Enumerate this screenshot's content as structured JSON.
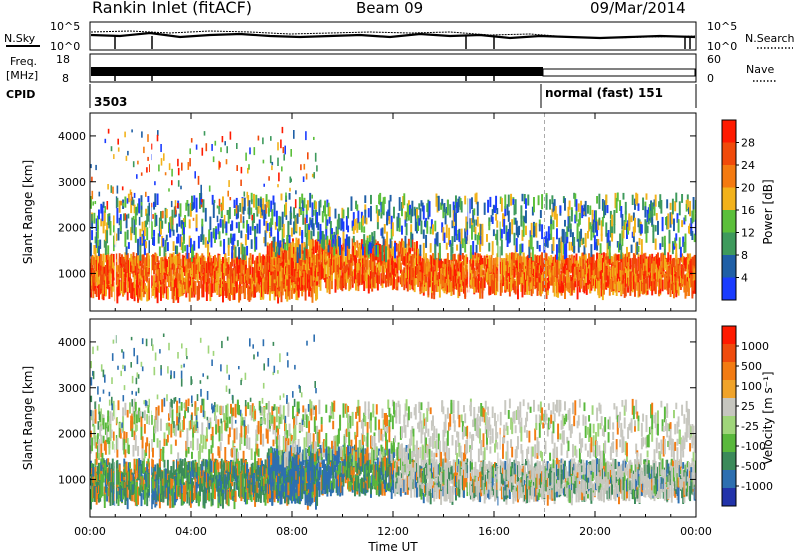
{
  "header": {
    "site": "Rankin Inlet (fitACF)",
    "beam": "Beam 09",
    "date": "09/Mar/2014"
  },
  "noise_panel": {
    "left_label": "N.Sky",
    "left_ticks": [
      "10^5",
      "10^0"
    ],
    "right_label": "N.Search",
    "right_ticks": [
      "10^5",
      "10^0"
    ]
  },
  "freq_panel": {
    "left_label_1": "Freq.",
    "left_label_2": "[MHz]",
    "left_ticks": [
      "18",
      "8"
    ],
    "right_label": "Nave",
    "right_ticks": [
      "60",
      "0"
    ]
  },
  "cpid_panel": {
    "label": "CPID",
    "segments": [
      {
        "text": "3503",
        "start_hour": 0
      },
      {
        "text": "normal (fast) 151",
        "start_hour": 18
      }
    ]
  },
  "colors": {
    "power": [
      "#1a3cff",
      "#1f5fa6",
      "#3e9a5c",
      "#5bbf3a",
      "#f2b21b",
      "#f47a10",
      "#f14a0a",
      "#ff1a00"
    ],
    "velocity": [
      "#2233aa",
      "#2d6fb0",
      "#3b8a5a",
      "#59b83c",
      "#9fd57a",
      "#c6c6bf",
      "#f0a32a",
      "#f27b12",
      "#ef4b0d",
      "#ff1a00"
    ],
    "groundscatter": "#c8c8c0"
  },
  "chart_data": [
    {
      "type": "heatmap",
      "title": "Power",
      "ylabel": "Slant Range [km]",
      "ylim": [
        180,
        4500
      ],
      "y_ticks": [
        "1000",
        "2000",
        "3000",
        "4000"
      ],
      "x_ticks": [
        "00:00",
        "04:00",
        "08:00",
        "12:00",
        "16:00",
        "20:00",
        "00:00"
      ],
      "xlim_hours": [
        0,
        24
      ],
      "colorbar": {
        "label": "Power [dB]",
        "ticks": [
          "28",
          "24",
          "20",
          "16",
          "12",
          "8",
          "4"
        ]
      },
      "echo_regions": [
        {
          "hours": [
            0,
            9
          ],
          "km": [
            600,
            1400
          ]
        },
        {
          "hours": [
            7,
            13
          ],
          "km": [
            800,
            1700
          ]
        },
        {
          "hours": [
            13,
            24
          ],
          "km": [
            700,
            1400
          ]
        },
        {
          "hours": [
            0,
            24
          ],
          "km": [
            1500,
            2700
          ]
        }
      ]
    },
    {
      "type": "heatmap",
      "title": "Velocity",
      "ylabel": "Slant Range [km]",
      "ylim": [
        180,
        4500
      ],
      "y_ticks": [
        "1000",
        "2000",
        "3000",
        "4000"
      ],
      "x_ticks": [
        "00:00",
        "04:00",
        "08:00",
        "12:00",
        "16:00",
        "20:00",
        "00:00"
      ],
      "xlim_hours": [
        0,
        24
      ],
      "xlabel": "Time UT",
      "colorbar": {
        "label": "Velocity [m s⁻¹]",
        "ticks": [
          "1000",
          "500",
          "100",
          "25",
          "-25",
          "-100",
          "-500",
          "-1000"
        ]
      },
      "echo_regions": [
        {
          "hours": [
            0,
            9
          ],
          "km": [
            600,
            1400
          ]
        },
        {
          "hours": [
            7,
            13
          ],
          "km": [
            800,
            1700
          ]
        },
        {
          "hours": [
            13,
            24
          ],
          "km": [
            700,
            1400
          ]
        },
        {
          "hours": [
            0,
            24
          ],
          "km": [
            1500,
            2700
          ]
        }
      ]
    }
  ]
}
